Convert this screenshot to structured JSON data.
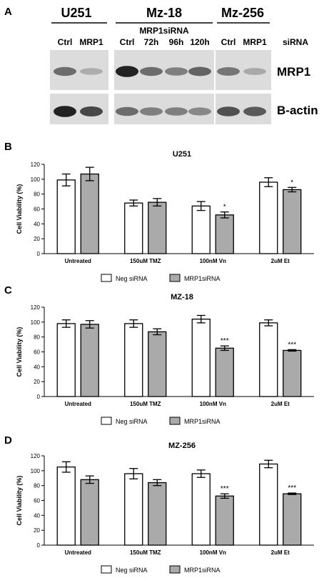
{
  "blot": {
    "panel_letter": "A",
    "cell_lines": [
      "U251",
      "Mz-18",
      "Mz-256"
    ],
    "sirna_group_label": "MRP1siRNA",
    "lane_labels": [
      "Ctrl",
      "MRP1",
      "Ctrl",
      "72h",
      "96h",
      "120h",
      "Ctrl",
      "MRP1"
    ],
    "row_side_label": "siRNA",
    "band_labels": [
      "MRP1",
      "B-actin"
    ],
    "mrp1_intensity": [
      0.55,
      0.2,
      0.95,
      0.55,
      0.45,
      0.6,
      0.5,
      0.22
    ],
    "actin_intensity": [
      0.95,
      0.75,
      0.55,
      0.45,
      0.45,
      0.4,
      0.7,
      0.65
    ]
  },
  "chart_data": [
    {
      "panel_letter": "B",
      "type": "bar",
      "title": "U251",
      "ylabel": "Cell Viability (%)",
      "ylim": [
        0,
        120
      ],
      "yticks": [
        0,
        20,
        40,
        60,
        80,
        100,
        120
      ],
      "categories": [
        "Untreated",
        "150uM TMZ",
        "100nM Vn",
        "2uM Et"
      ],
      "series": [
        {
          "name": "Neg siRNA",
          "color": "#ffffff",
          "values": [
            99,
            68,
            64,
            96
          ],
          "errors": [
            8,
            4,
            6,
            6
          ]
        },
        {
          "name": "MRP1siRNA",
          "color": "#aaaaaa",
          "values": [
            107,
            69,
            52,
            86
          ],
          "errors": [
            9,
            5,
            4,
            3
          ]
        }
      ],
      "significance": [
        {
          "category": "100nM Vn",
          "label": "*"
        },
        {
          "category": "2uM Et",
          "label": "*"
        }
      ]
    },
    {
      "panel_letter": "C",
      "type": "bar",
      "title": "MZ-18",
      "ylabel": "Cell Viability (%)",
      "ylim": [
        0,
        120
      ],
      "yticks": [
        0,
        20,
        40,
        60,
        80,
        100,
        120
      ],
      "categories": [
        "Untreated",
        "150uM TMZ",
        "100nM Vn",
        "2uM Et"
      ],
      "series": [
        {
          "name": "Neg siRNA",
          "color": "#ffffff",
          "values": [
            98,
            98,
            104,
            99
          ],
          "errors": [
            5,
            5,
            5,
            4
          ]
        },
        {
          "name": "MRP1siRNA",
          "color": "#aaaaaa",
          "values": [
            97,
            87,
            65,
            62
          ],
          "errors": [
            5,
            4,
            3,
            1
          ]
        }
      ],
      "significance": [
        {
          "category": "100nM Vn",
          "label": "***"
        },
        {
          "category": "2uM Et",
          "label": "***"
        }
      ]
    },
    {
      "panel_letter": "D",
      "type": "bar",
      "title": "MZ-256",
      "ylabel": "Cell Viability (%)",
      "ylim": [
        0,
        120
      ],
      "yticks": [
        0,
        20,
        40,
        60,
        80,
        100,
        120
      ],
      "categories": [
        "Untreated",
        "150uM TMZ",
        "100nM Vn",
        "2uM Et"
      ],
      "series": [
        {
          "name": "Neg siRNA",
          "color": "#ffffff",
          "values": [
            105,
            96,
            96,
            109
          ],
          "errors": [
            7,
            7,
            5,
            5
          ]
        },
        {
          "name": "MRP1siRNA",
          "color": "#aaaaaa",
          "values": [
            88,
            84,
            66,
            69
          ],
          "errors": [
            5,
            4,
            3,
            1
          ]
        }
      ],
      "significance": [
        {
          "category": "100nM Vn",
          "label": "***"
        },
        {
          "category": "2uM Et",
          "label": "***"
        }
      ]
    }
  ]
}
